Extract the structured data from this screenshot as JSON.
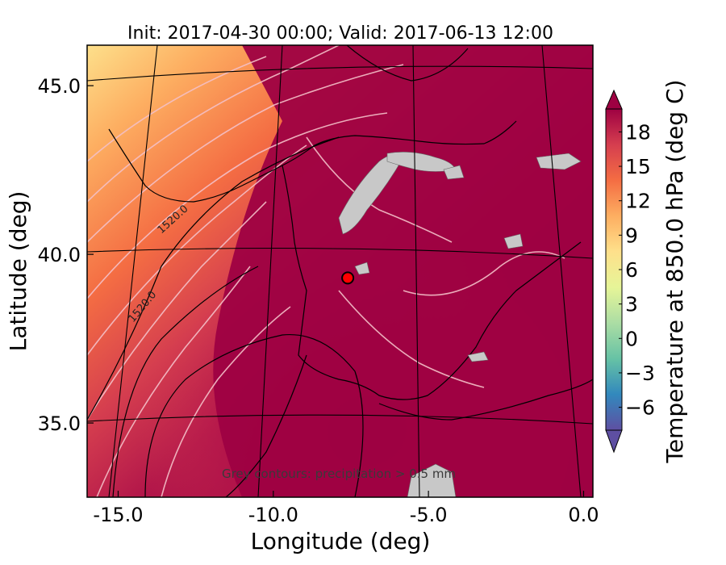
{
  "chart_data": {
    "type": "heatmap",
    "title": "Init: 2017-04-30 00:00; Valid: 2017-06-13 12:00",
    "xlabel": "Longitude (deg)",
    "ylabel": "Latitude (deg)",
    "xlim": [
      -16.0,
      0.3
    ],
    "ylim": [
      32.8,
      46.2
    ],
    "x_ticks": [
      -15.0,
      -10.0,
      -5.0,
      0.0
    ],
    "x_tick_labels": [
      "-15.0",
      "-10.0",
      "-5.0",
      "0.0"
    ],
    "y_ticks": [
      35.0,
      40.0,
      45.0
    ],
    "y_tick_labels": [
      "35.0",
      "40.0",
      "45.0"
    ],
    "colorbar": {
      "label": "Temperature at 850.0 hPa (deg C)",
      "colormap": "Spectral_r",
      "range": [
        -8,
        20
      ],
      "extend": "both",
      "ticks": [
        -6,
        -3,
        0,
        3,
        6,
        9,
        12,
        15,
        18
      ],
      "tick_labels": [
        "−6",
        "−3",
        "0",
        "3",
        "6",
        "9",
        "12",
        "15",
        "18"
      ],
      "stops": [
        "#5e4fa2",
        "#3288bd",
        "#66c2a5",
        "#abdda4",
        "#e6f598",
        "#fee08b",
        "#fdae61",
        "#f46d43",
        "#d53e4f",
        "#9e0142"
      ]
    },
    "contour_labels": [
      "1520.0",
      "1520.0"
    ],
    "annotation": "Grey contours: precipitation > 0.5 mm",
    "marker": {
      "lon": -7.6,
      "lat": 39.3,
      "color": "#ff0000"
    },
    "field": [
      {
        "lon": -15.5,
        "lat": 45.5,
        "value": 7
      },
      {
        "lon": -14.0,
        "lat": 44.5,
        "value": 9
      },
      {
        "lon": -12.0,
        "lat": 43.5,
        "value": 11
      },
      {
        "lon": -15.5,
        "lat": 40.0,
        "value": 12
      },
      {
        "lon": -13.0,
        "lat": 38.0,
        "value": 14
      },
      {
        "lon": -15.5,
        "lat": 34.0,
        "value": 13
      },
      {
        "lon": -9.0,
        "lat": 42.0,
        "value": 17
      },
      {
        "lon": -5.0,
        "lat": 38.0,
        "value": 20
      }
    ]
  },
  "colors": {
    "precip": "#c8c8c8",
    "grid": "#000000",
    "coast": "#000000",
    "isotherm": "#f4c0c8"
  }
}
